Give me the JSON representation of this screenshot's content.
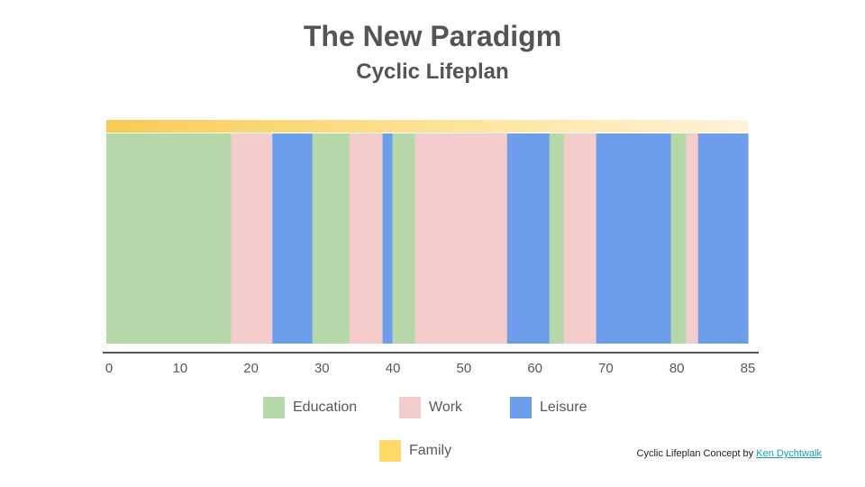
{
  "title": "The New Paradigm",
  "subtitle": "Cyclic Lifeplan",
  "credit": {
    "text": "Cyclic Lifeplan Concept by",
    "link_text": "Ken Dychtwalk"
  },
  "colors": {
    "education": "#b6d7a8",
    "work": "#f4cccc",
    "leisure": "#6d9eeb",
    "family": "#ffd966",
    "axis": "#555555"
  },
  "chart_data": {
    "type": "bar",
    "orientation": "horizontal-timeline",
    "xlim": [
      0,
      85
    ],
    "ticks": [
      0,
      10,
      20,
      30,
      40,
      50,
      60,
      70,
      80,
      85
    ],
    "categories": [
      "Education",
      "Work",
      "Leisure"
    ],
    "segments": [
      {
        "category": "Education",
        "start": 0,
        "end": 16.5
      },
      {
        "category": "Work",
        "start": 16.5,
        "end": 22
      },
      {
        "category": "Leisure",
        "start": 22,
        "end": 27.3
      },
      {
        "category": "Education",
        "start": 27.3,
        "end": 32.2
      },
      {
        "category": "Work",
        "start": 32.2,
        "end": 36.6
      },
      {
        "category": "Leisure",
        "start": 36.6,
        "end": 37.9
      },
      {
        "category": "Education",
        "start": 37.9,
        "end": 40.9
      },
      {
        "category": "Work",
        "start": 40.9,
        "end": 53.1
      },
      {
        "category": "Leisure",
        "start": 53.1,
        "end": 58.7
      },
      {
        "category": "Education",
        "start": 58.7,
        "end": 60.6
      },
      {
        "category": "Work",
        "start": 60.6,
        "end": 64.9
      },
      {
        "category": "Leisure",
        "start": 64.9,
        "end": 74.8
      },
      {
        "category": "Education",
        "start": 74.8,
        "end": 76.8
      },
      {
        "category": "Work",
        "start": 76.8,
        "end": 78.4
      },
      {
        "category": "Leisure",
        "start": 78.4,
        "end": 85
      }
    ],
    "family_band": {
      "name": "Family",
      "start": 0,
      "end": 85,
      "gradient": "fades out toward 85"
    },
    "legend": [
      {
        "label": "Education",
        "key": "education"
      },
      {
        "label": "Work",
        "key": "work"
      },
      {
        "label": "Leisure",
        "key": "leisure"
      },
      {
        "label": "Family",
        "key": "family"
      }
    ]
  }
}
